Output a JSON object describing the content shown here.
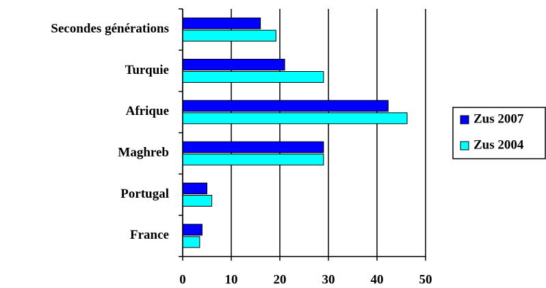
{
  "chart_data": {
    "type": "hbar",
    "categories": [
      "Secondes générations",
      "Turquie",
      "Afrique",
      "Maghreb",
      "Portugal",
      "France"
    ],
    "series": [
      {
        "name": "Zus 2007",
        "color": "#0000ff",
        "values": [
          16,
          21,
          42.3,
          29,
          5,
          4
        ]
      },
      {
        "name": "Zus 2004",
        "color": "#00ffff",
        "values": [
          19.2,
          29,
          46.2,
          29,
          6,
          3.5
        ]
      }
    ],
    "xlim": [
      0,
      50
    ],
    "xticks": [
      0,
      10,
      20,
      30,
      40,
      50
    ],
    "grid": true,
    "legend": "right"
  }
}
